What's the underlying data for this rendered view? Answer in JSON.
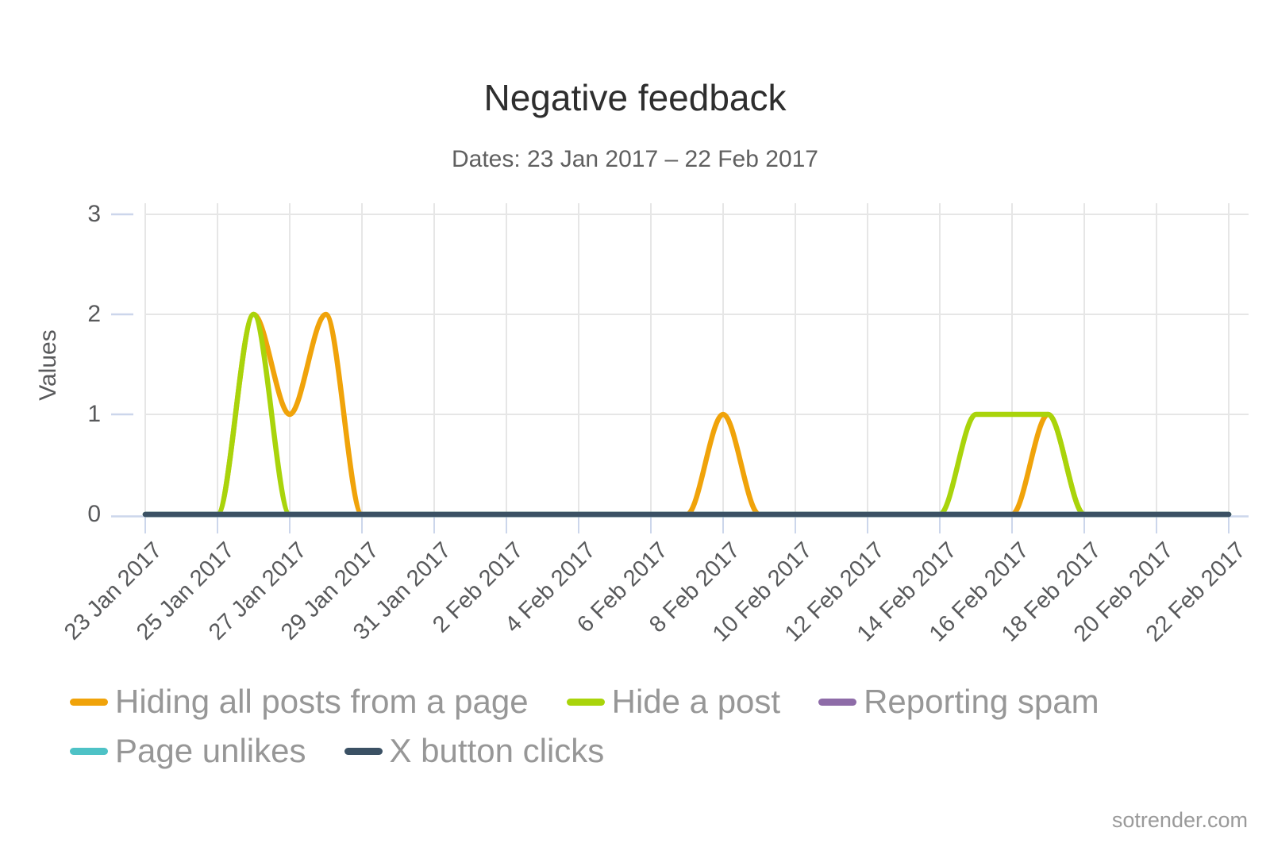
{
  "chart_data": {
    "type": "line",
    "title": "Negative feedback",
    "subtitle": "Dates: 23 Jan 2017 – 22 Feb 2017",
    "xlabel": "",
    "ylabel": "Values",
    "ylim": [
      0,
      3
    ],
    "grid": true,
    "legend_position": "bottom",
    "y_tick_labels": [
      "3",
      "2",
      "1",
      "0"
    ],
    "x_tick_labels": [
      "23 Jan 2017",
      "25 Jan 2017",
      "27 Jan 2017",
      "29 Jan 2017",
      "31 Jan 2017",
      "2 Feb 2017",
      "4 Feb 2017",
      "6 Feb 2017",
      "8 Feb 2017",
      "10 Feb 2017",
      "12 Feb 2017",
      "14 Feb 2017",
      "16 Feb 2017",
      "18 Feb 2017",
      "20 Feb 2017",
      "22 Feb 2017"
    ],
    "categories": [
      "23 Jan 2017",
      "24 Jan 2017",
      "25 Jan 2017",
      "26 Jan 2017",
      "27 Jan 2017",
      "28 Jan 2017",
      "29 Jan 2017",
      "30 Jan 2017",
      "31 Jan 2017",
      "1 Feb 2017",
      "2 Feb 2017",
      "3 Feb 2017",
      "4 Feb 2017",
      "5 Feb 2017",
      "6 Feb 2017",
      "7 Feb 2017",
      "8 Feb 2017",
      "9 Feb 2017",
      "10 Feb 2017",
      "11 Feb 2017",
      "12 Feb 2017",
      "13 Feb 2017",
      "14 Feb 2017",
      "15 Feb 2017",
      "16 Feb 2017",
      "17 Feb 2017",
      "18 Feb 2017",
      "19 Feb 2017",
      "20 Feb 2017",
      "21 Feb 2017",
      "22 Feb 2017"
    ],
    "series": [
      {
        "name": "Hiding all posts from a page",
        "color": "#F0A30A",
        "values": [
          0,
          0,
          0,
          2,
          1,
          2,
          0,
          0,
          0,
          0,
          0,
          0,
          0,
          0,
          0,
          0,
          1,
          0,
          0,
          0,
          0,
          0,
          0,
          0,
          0,
          1,
          0,
          0,
          0,
          0,
          0
        ]
      },
      {
        "name": "Hide a post",
        "color": "#A9D40B",
        "values": [
          0,
          0,
          0,
          2,
          0,
          0,
          0,
          0,
          0,
          0,
          0,
          0,
          0,
          0,
          0,
          0,
          0,
          0,
          0,
          0,
          0,
          0,
          0,
          1,
          1,
          1,
          0,
          0,
          0,
          0,
          0
        ]
      },
      {
        "name": "Reporting spam",
        "color": "#8E6CA8",
        "values": [
          0,
          0,
          0,
          0,
          0,
          0,
          0,
          0,
          0,
          0,
          0,
          0,
          0,
          0,
          0,
          0,
          0,
          0,
          0,
          0,
          0,
          0,
          0,
          0,
          0,
          0,
          0,
          0,
          0,
          0,
          0
        ]
      },
      {
        "name": "Page unlikes",
        "color": "#4EC2C6",
        "values": [
          0,
          0,
          0,
          0,
          0,
          0,
          0,
          0,
          0,
          0,
          0,
          0,
          0,
          0,
          0,
          0,
          0,
          0,
          0,
          0,
          0,
          0,
          0,
          0,
          0,
          0,
          0,
          0,
          0,
          0,
          0
        ]
      },
      {
        "name": "X button clicks",
        "color": "#3B5164",
        "values": [
          0,
          0,
          0,
          0,
          0,
          0,
          0,
          0,
          0,
          0,
          0,
          0,
          0,
          0,
          0,
          0,
          0,
          0,
          0,
          0,
          0,
          0,
          0,
          0,
          0,
          0,
          0,
          0,
          0,
          0,
          0
        ]
      }
    ],
    "colors": {
      "grid": "#E6E6E6",
      "axis": "#CCD6EB"
    }
  },
  "footer": {
    "watermark": "sotrender.com"
  }
}
